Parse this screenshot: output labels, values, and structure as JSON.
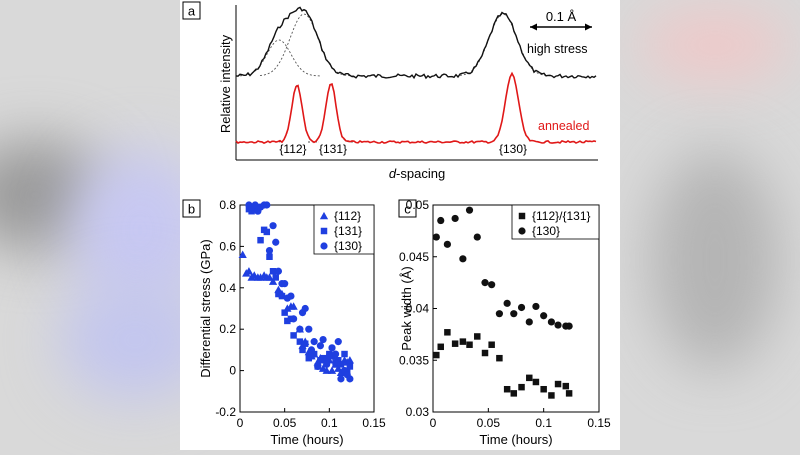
{
  "colors": {
    "black": "#111111",
    "red": "#e01818",
    "blue": "#1f3fe0",
    "fit": "#555555"
  },
  "panel_a": {
    "letter": "a",
    "ylabel": "Relative intensity",
    "xlabel_italic": "d",
    "xlabel_rest": "-spacing",
    "scale_bar_label": "0.1 Å",
    "trace_high_label": "high stress",
    "trace_annealed_label": "annealed",
    "peak_labels": [
      "{112}",
      "{131}",
      "{130}"
    ]
  },
  "chart_data": [
    {
      "panel": "b",
      "type": "scatter",
      "xlabel": "Time (hours)",
      "ylabel": "Differential stress (GPa)",
      "xlim": [
        0,
        0.15
      ],
      "ylim": [
        -0.2,
        0.8
      ],
      "xticks": [
        "0",
        "0.05",
        "0.1",
        "0.15"
      ],
      "yticks": [
        "-0.2",
        "0",
        "0.2",
        "0.4",
        "0.6",
        "0.8"
      ],
      "legend_position": "top-right",
      "series": [
        {
          "name": "{112}",
          "marker": "triangle",
          "x": [
            0.003,
            0.007,
            0.01,
            0.013,
            0.016,
            0.02,
            0.023,
            0.027,
            0.03,
            0.033,
            0.037,
            0.043,
            0.047,
            0.053,
            0.057,
            0.06,
            0.067,
            0.07,
            0.073,
            0.077,
            0.08,
            0.083,
            0.087,
            0.09,
            0.093,
            0.097,
            0.1,
            0.103,
            0.107,
            0.11,
            0.113,
            0.117,
            0.12,
            0.123
          ],
          "y": [
            0.56,
            0.47,
            0.48,
            0.45,
            0.46,
            0.45,
            0.45,
            0.46,
            0.45,
            0.45,
            0.43,
            0.39,
            0.37,
            0.3,
            0.31,
            0.31,
            0.2,
            0.12,
            0.14,
            0.09,
            0.07,
            0.08,
            0.04,
            0.06,
            0.01,
            0.0,
            0.05,
            0.0,
            0.03,
            0.01,
            -0.01,
            0.05,
            0.04,
            0.05
          ]
        },
        {
          "name": "{131}",
          "marker": "square",
          "x": [
            0.01,
            0.013,
            0.017,
            0.02,
            0.023,
            0.027,
            0.03,
            0.033,
            0.037,
            0.04,
            0.043,
            0.047,
            0.05,
            0.053,
            0.057,
            0.06,
            0.067,
            0.07,
            0.073,
            0.077,
            0.08,
            0.083,
            0.087,
            0.09,
            0.093,
            0.097,
            0.1,
            0.103,
            0.107,
            0.11,
            0.113,
            0.117,
            0.12,
            0.123
          ],
          "y": [
            0.78,
            0.77,
            0.78,
            0.79,
            0.63,
            0.68,
            0.67,
            0.55,
            0.48,
            0.45,
            0.37,
            0.36,
            0.28,
            0.24,
            0.25,
            0.17,
            0.14,
            0.1,
            0.13,
            0.06,
            0.07,
            0.08,
            0.02,
            0.05,
            0.06,
            0.05,
            0.08,
            0.07,
            0.04,
            0.05,
            0.03,
            0.08,
            0.0,
            0.02
          ]
        },
        {
          "name": "{130}",
          "marker": "circle",
          "x": [
            0.01,
            0.013,
            0.017,
            0.02,
            0.023,
            0.027,
            0.03,
            0.033,
            0.037,
            0.04,
            0.043,
            0.047,
            0.05,
            0.053,
            0.057,
            0.06,
            0.067,
            0.07,
            0.073,
            0.077,
            0.08,
            0.083,
            0.087,
            0.09,
            0.093,
            0.097,
            0.1,
            0.103,
            0.107,
            0.11,
            0.113,
            0.117,
            0.12,
            0.123
          ],
          "y": [
            0.8,
            0.79,
            0.8,
            0.77,
            0.79,
            0.8,
            0.8,
            0.58,
            0.7,
            0.62,
            0.48,
            0.42,
            0.42,
            0.35,
            0.36,
            0.25,
            0.2,
            0.28,
            0.3,
            0.2,
            0.1,
            0.14,
            0.02,
            0.12,
            0.15,
            0.03,
            0.07,
            0.11,
            0.08,
            0.14,
            -0.04,
            0.0,
            -0.02,
            -0.04
          ]
        }
      ]
    },
    {
      "panel": "c",
      "type": "scatter",
      "xlabel": "Time (hours)",
      "ylabel": "Peak width (Å)",
      "xlim": [
        0,
        0.15
      ],
      "ylim": [
        0.03,
        0.05
      ],
      "xticks": [
        "0",
        "0.05",
        "0.1",
        "0.15"
      ],
      "yticks": [
        "0.03",
        "0.035",
        "0.04",
        "0.045",
        "0.05"
      ],
      "legend_position": "top-right",
      "series": [
        {
          "name": "{112}/{131}",
          "marker": "square",
          "x": [
            0.003,
            0.007,
            0.013,
            0.02,
            0.027,
            0.033,
            0.04,
            0.047,
            0.053,
            0.06,
            0.067,
            0.073,
            0.08,
            0.087,
            0.093,
            0.1,
            0.107,
            0.113,
            0.12,
            0.123
          ],
          "y": [
            0.0355,
            0.0363,
            0.0377,
            0.0366,
            0.0368,
            0.0365,
            0.0373,
            0.0357,
            0.0365,
            0.0352,
            0.0322,
            0.0318,
            0.0324,
            0.0333,
            0.0329,
            0.0322,
            0.0316,
            0.0327,
            0.0325,
            0.0318
          ]
        },
        {
          "name": "{130}",
          "marker": "circle",
          "x": [
            0.003,
            0.007,
            0.013,
            0.02,
            0.027,
            0.033,
            0.04,
            0.047,
            0.053,
            0.06,
            0.067,
            0.073,
            0.08,
            0.087,
            0.093,
            0.1,
            0.107,
            0.113,
            0.12,
            0.123
          ],
          "y": [
            0.0469,
            0.0485,
            0.0462,
            0.0487,
            0.0448,
            0.0495,
            0.0469,
            0.0425,
            0.0423,
            0.0395,
            0.0405,
            0.0395,
            0.0401,
            0.0387,
            0.0402,
            0.0393,
            0.0387,
            0.0384,
            0.0383,
            0.0383
          ]
        }
      ]
    }
  ]
}
